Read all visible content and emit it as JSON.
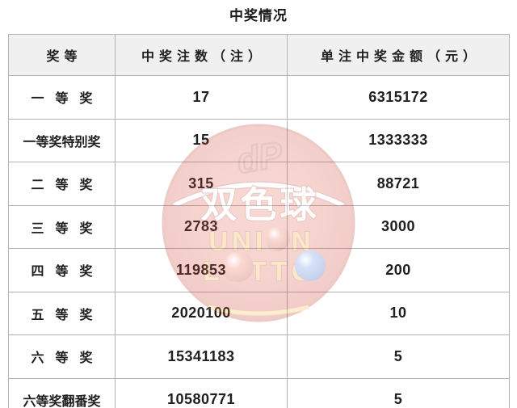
{
  "title": "中奖情况",
  "colors": {
    "header_bg": "#f0f0f0",
    "border": "#b3b3b3",
    "text": "#1f1f1f",
    "watermark_red": "#cf3a2a",
    "watermark_yellow": "#f5a623",
    "watermark_blue_ball": "#2a5fd0"
  },
  "table": {
    "headers": [
      "奖等",
      "中奖注数（注）",
      "单注中奖金额（元）"
    ],
    "rows": [
      {
        "level": "一等奖",
        "count": "17",
        "amount": "6315172"
      },
      {
        "level": "一等奖特别奖",
        "count": "15",
        "amount": "1333333"
      },
      {
        "level": "二等奖",
        "count": "315",
        "amount": "88721"
      },
      {
        "level": "三等奖",
        "count": "2783",
        "amount": "3000"
      },
      {
        "level": "四等奖",
        "count": "119853",
        "amount": "200"
      },
      {
        "level": "五等奖",
        "count": "2020100",
        "amount": "10"
      },
      {
        "level": "六等奖",
        "count": "15341183",
        "amount": "5"
      },
      {
        "level": "六等奖翻番奖",
        "count": "10580771",
        "amount": "5"
      }
    ]
  },
  "watermark": {
    "brand_logo": "dP",
    "brand_cn": "双色球",
    "brand_en_line1": "UNION",
    "brand_en_line2": "LOTTO"
  },
  "chart_data": {
    "type": "table",
    "title": "中奖情况",
    "columns": [
      "奖等",
      "中奖注数（注）",
      "单注中奖金额（元）"
    ],
    "rows": [
      [
        "一等奖",
        17,
        6315172
      ],
      [
        "一等奖特别奖",
        15,
        1333333
      ],
      [
        "二等奖",
        315,
        88721
      ],
      [
        "三等奖",
        2783,
        3000
      ],
      [
        "四等奖",
        119853,
        200
      ],
      [
        "五等奖",
        2020100,
        10
      ],
      [
        "六等奖",
        15341183,
        5
      ],
      [
        "六等奖翻番奖",
        10580771,
        5
      ]
    ]
  }
}
